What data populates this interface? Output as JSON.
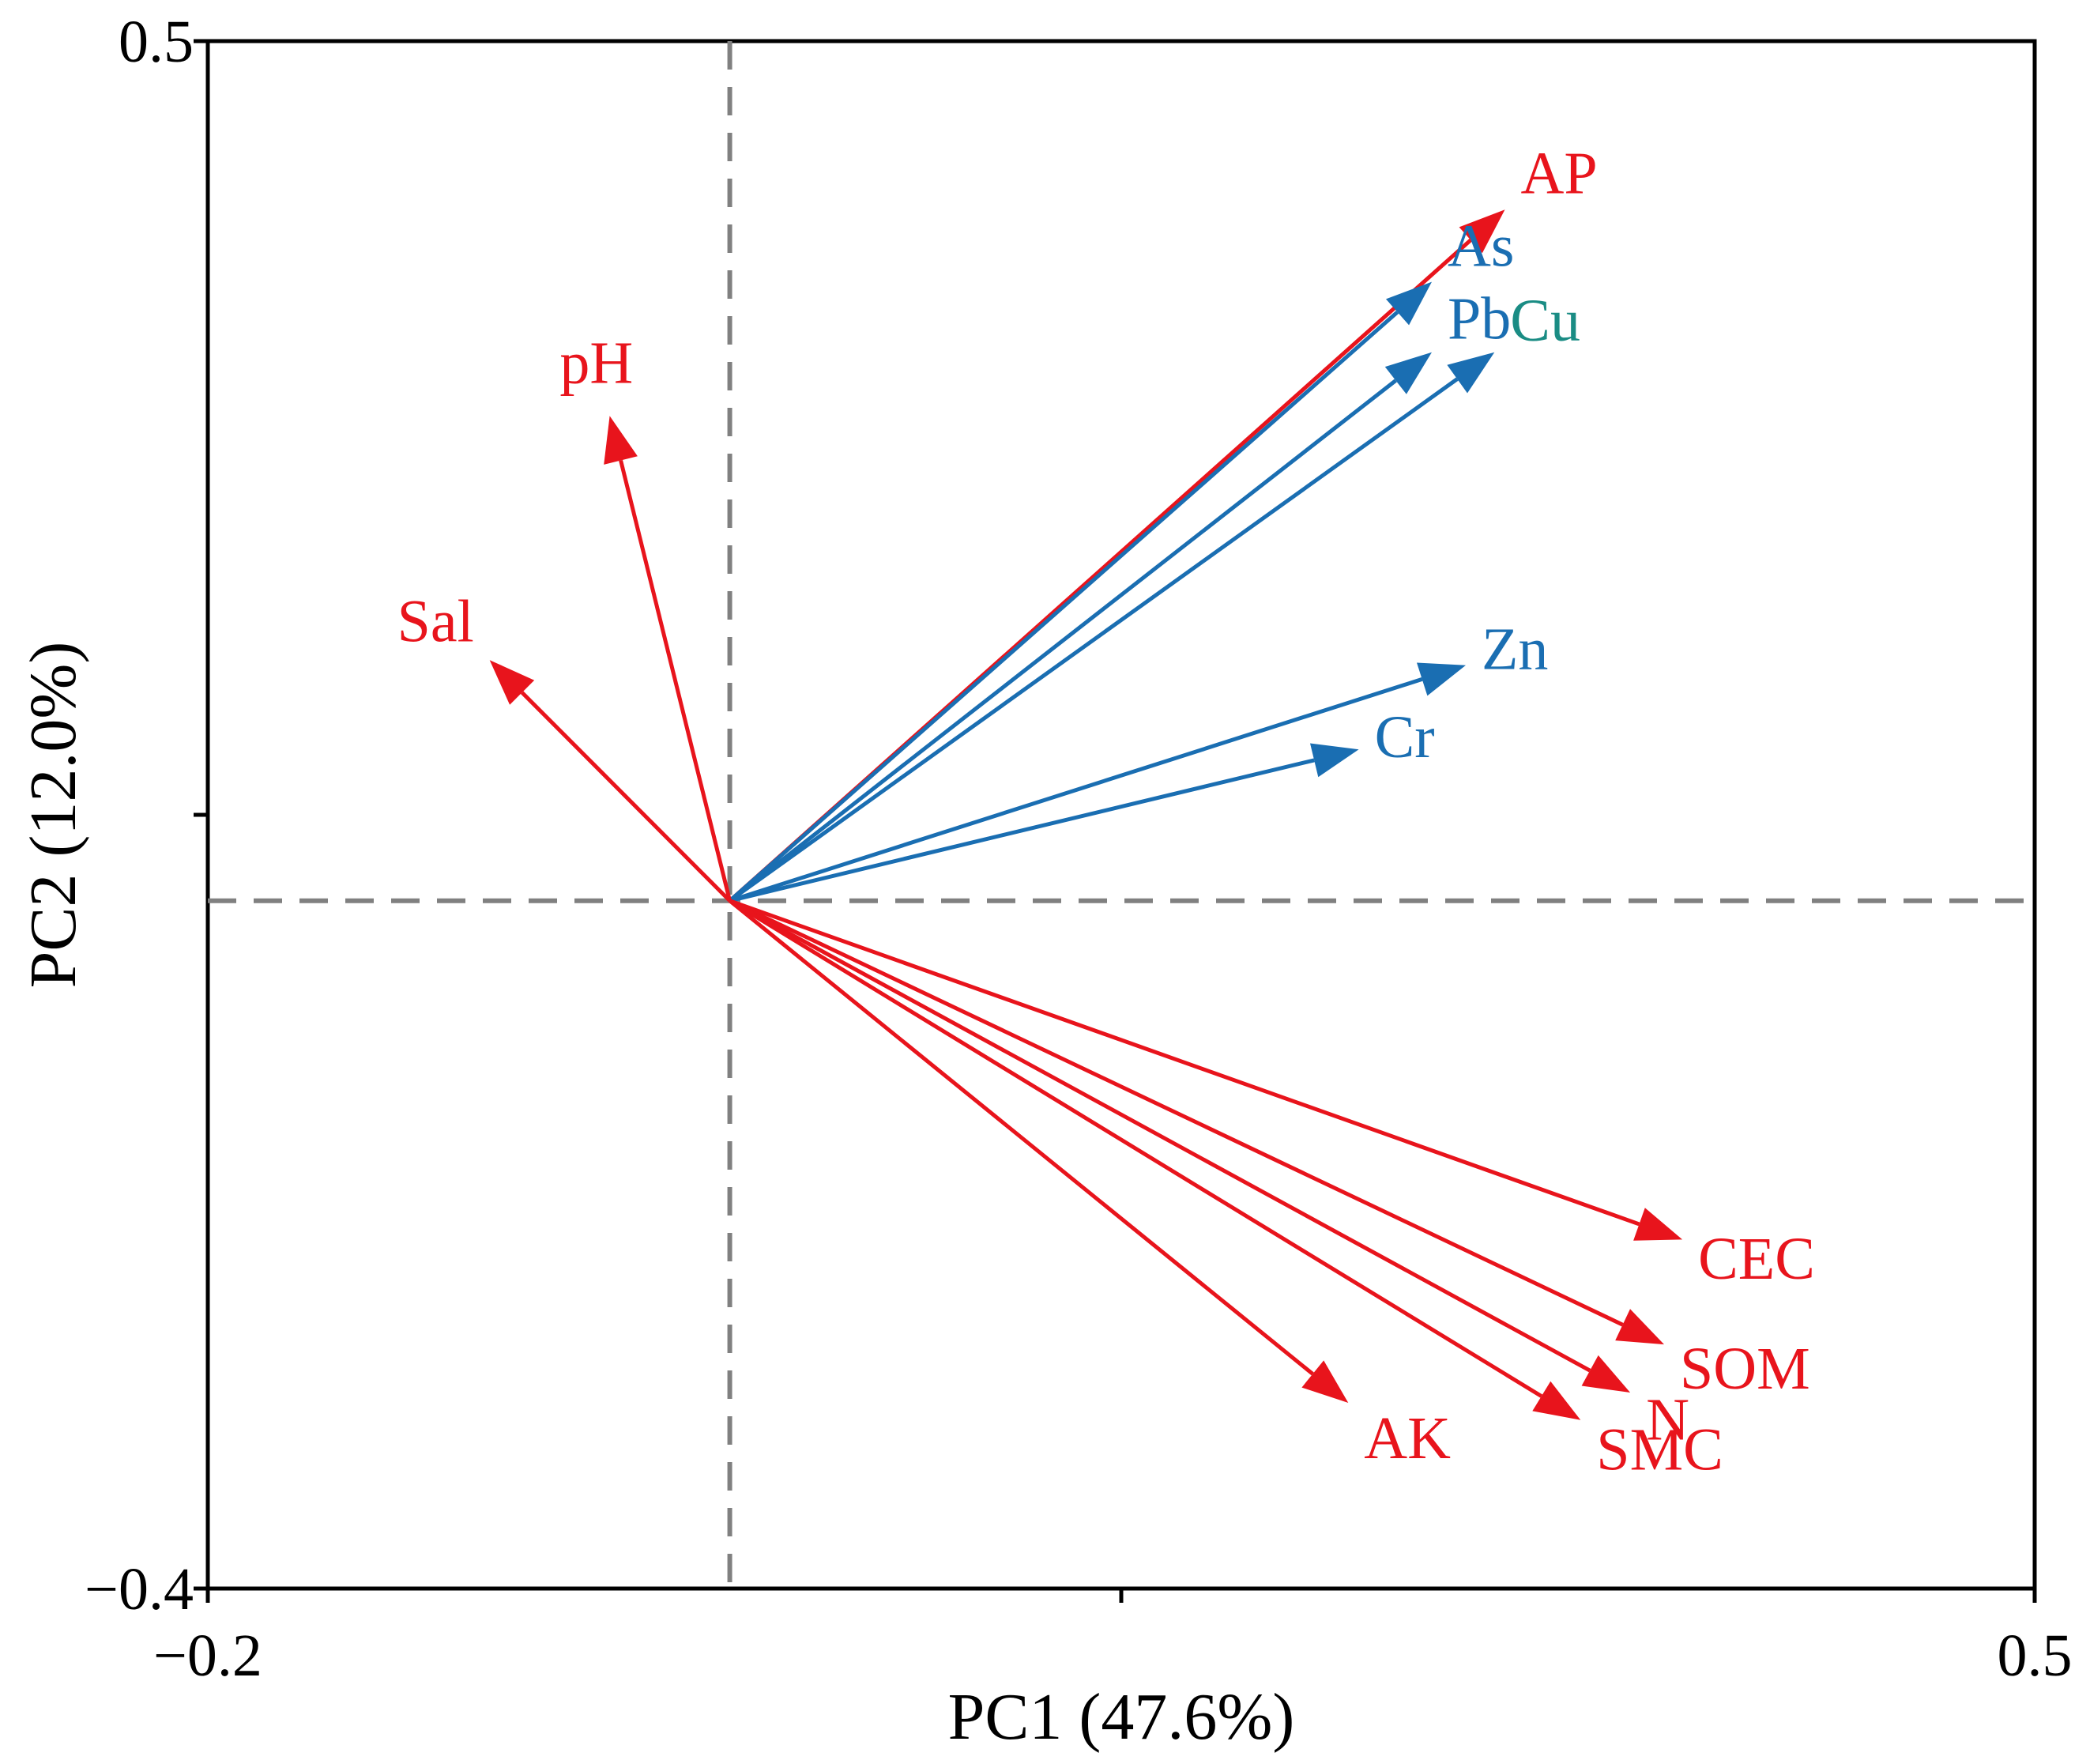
{
  "chart_data": {
    "type": "biplot",
    "xlabel": "PC1 (47.6%)",
    "ylabel": "PC2 (12.0%)",
    "xlim": [
      -0.2,
      0.5
    ],
    "ylim": [
      -0.4,
      0.5
    ],
    "x_ticks": [
      -0.2,
      0.15,
      0.5
    ],
    "y_ticks": [
      -0.4,
      0.05,
      0.5
    ],
    "x_tick_labels": [
      "−0.2",
      "",
      "0.5"
    ],
    "y_tick_labels": [
      "−0.4",
      "",
      "0.5"
    ],
    "origin": [
      0,
      0
    ],
    "reference_lines": "dashed at x=0 and y=0",
    "vectors": [
      {
        "name": "AP",
        "x": 0.297,
        "y": 0.402,
        "color": "#e8141c",
        "label_color": "#e8141c"
      },
      {
        "name": "As",
        "x": 0.269,
        "y": 0.36,
        "color": "#1a6eb2",
        "label_color": "#1a6eb2"
      },
      {
        "name": "Pb",
        "x": 0.269,
        "y": 0.319,
        "color": "#1a6eb2",
        "label_color": "#1a6eb2"
      },
      {
        "name": "Cu",
        "x": 0.293,
        "y": 0.319,
        "color": "#1a6eb2",
        "label_color": "#1a8c84"
      },
      {
        "name": "Zn",
        "x": 0.282,
        "y": 0.137,
        "color": "#1a6eb2",
        "label_color": "#1a6eb2"
      },
      {
        "name": "Cr",
        "x": 0.241,
        "y": 0.088,
        "color": "#1a6eb2",
        "label_color": "#1a6eb2"
      },
      {
        "name": "pH",
        "x": -0.046,
        "y": 0.282,
        "color": "#e8141c",
        "label_color": "#e8141c"
      },
      {
        "name": "Sal",
        "x": -0.092,
        "y": 0.14,
        "color": "#e8141c",
        "label_color": "#e8141c"
      },
      {
        "name": "CEC",
        "x": 0.365,
        "y": -0.197,
        "color": "#e8141c",
        "label_color": "#e8141c"
      },
      {
        "name": "SOM",
        "x": 0.358,
        "y": -0.258,
        "color": "#e8141c",
        "label_color": "#e8141c"
      },
      {
        "name": "N",
        "x": 0.345,
        "y": -0.286,
        "color": "#e8141c",
        "label_color": "#e8141c"
      },
      {
        "name": "SMC",
        "x": 0.326,
        "y": -0.302,
        "color": "#e8141c",
        "label_color": "#e8141c"
      },
      {
        "name": "AK",
        "x": 0.237,
        "y": -0.292,
        "color": "#e8141c",
        "label_color": "#e8141c"
      }
    ]
  }
}
